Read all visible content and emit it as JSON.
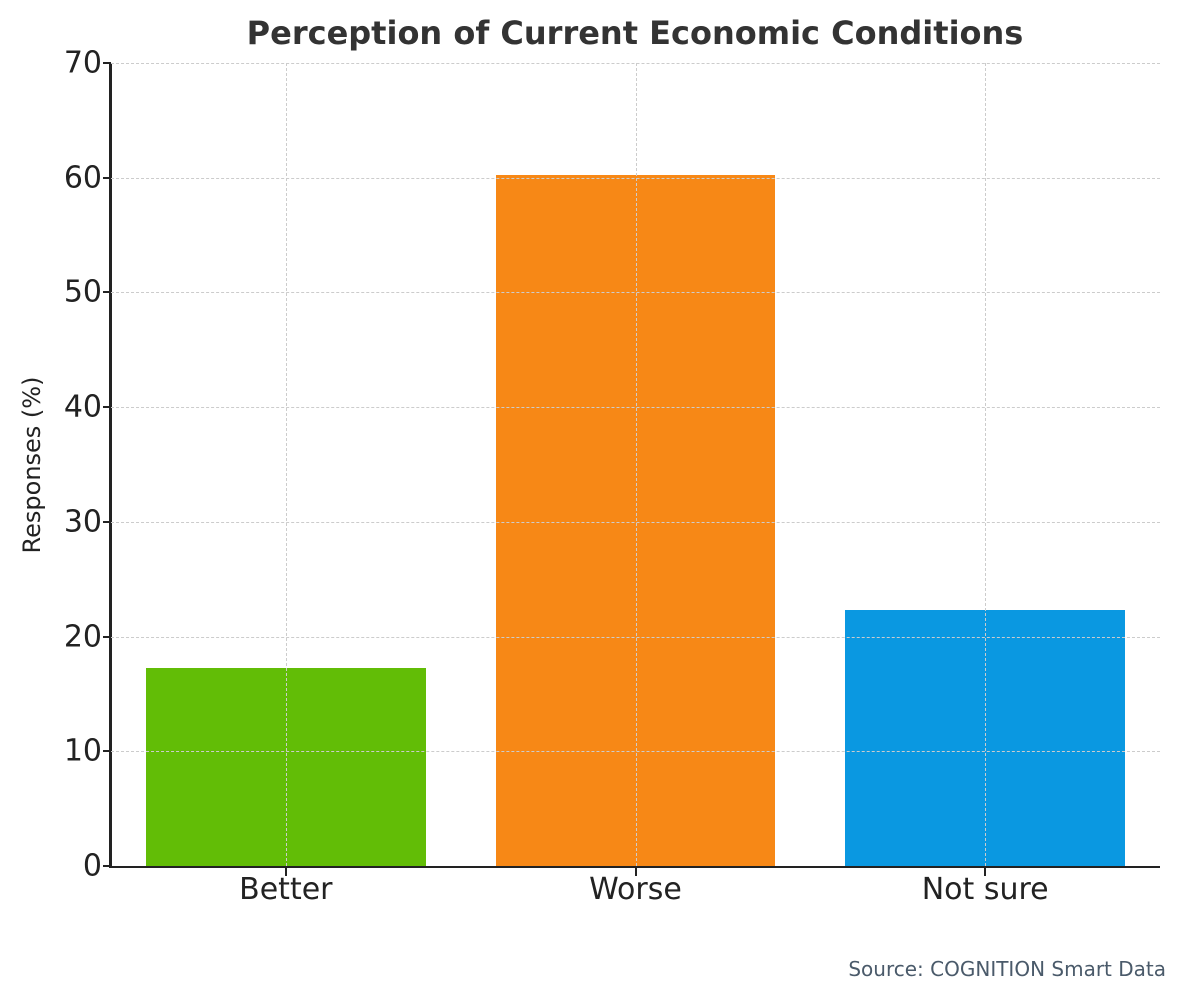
{
  "chart_data": {
    "type": "bar",
    "title": "Perception of Current Economic Conditions",
    "xlabel": "",
    "ylabel": "Responses (%)",
    "categories": [
      "Better",
      "Worse",
      "Not sure"
    ],
    "values": [
      17.3,
      60.2,
      22.3
    ],
    "colors": [
      "#62bd06",
      "#f78816",
      "#0a98e1"
    ],
    "ylim": [
      0,
      70
    ],
    "yticks": [
      0,
      10,
      20,
      30,
      40,
      50,
      60,
      70
    ],
    "grid": true,
    "legend": null,
    "source": "Source: COGNITION Smart Data"
  }
}
